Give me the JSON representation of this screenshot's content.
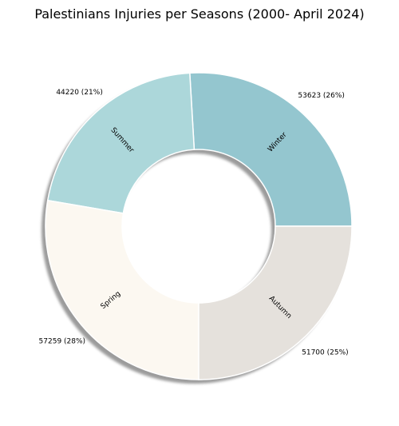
{
  "chart_data": {
    "type": "pie",
    "style": "donut",
    "title": "Palestinians Injuries per Seasons (2000- April 2024)",
    "shadow": true,
    "slices": [
      {
        "label": "Winter",
        "value": 53623,
        "display": "53623 (26%)",
        "color": "#94c6cf"
      },
      {
        "label": "Summer",
        "value": 44220,
        "display": "44220 (21%)",
        "color": "#acd7da"
      },
      {
        "label": "Spring",
        "value": 57259,
        "display": "57259 (28%)",
        "color": "#fcf8f1"
      },
      {
        "label": "Autumn",
        "value": 51700,
        "display": "51700 (25%)",
        "color": "#e5e1dc"
      }
    ]
  }
}
